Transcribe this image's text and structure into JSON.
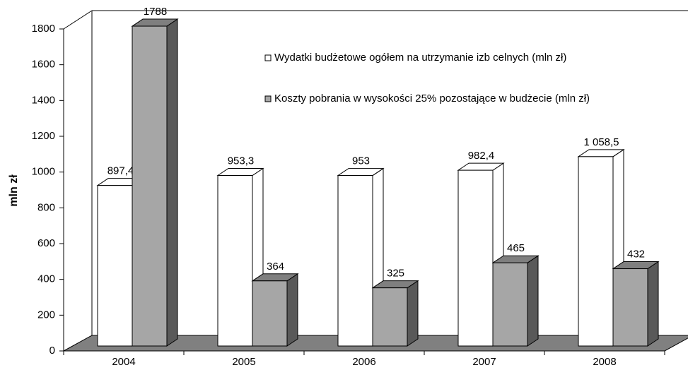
{
  "chart_data": {
    "type": "bar3d",
    "y_label": "mln zł",
    "categories": [
      "2004",
      "2005",
      "2006",
      "2007",
      "2008"
    ],
    "series": [
      {
        "name": "Wydatki budżetowe ogółem na utrzymanie izb celnych (mln zł)",
        "color": "#ffffff",
        "values": [
          897.4,
          953.3,
          953,
          982.4,
          1058.5
        ],
        "value_labels": [
          "897,4",
          "953,3",
          "953",
          "982,4",
          "1 058,5"
        ]
      },
      {
        "name": "Koszty pobrania w wysokości 25% pozostające w budżecie (mln zł)",
        "color": "#a6a6a6",
        "values": [
          1788,
          364,
          325,
          465,
          432
        ],
        "value_labels": [
          "1788",
          "364",
          "325",
          "465",
          "432"
        ]
      }
    ],
    "ylim": [
      0,
      1800
    ],
    "yticks": [
      0,
      200,
      400,
      600,
      800,
      1000,
      1200,
      1400,
      1600,
      1800
    ]
  }
}
